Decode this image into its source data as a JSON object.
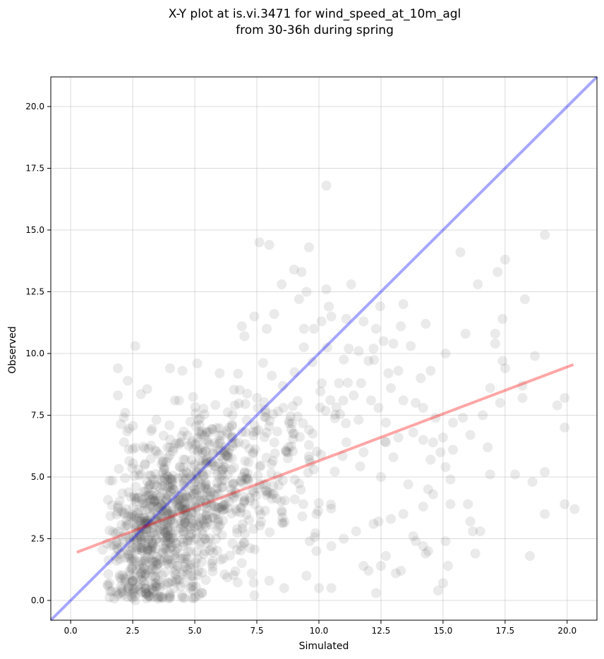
{
  "chart_data": {
    "type": "scatter",
    "title_line1": "X-Y plot at is.vi.3471 for wind_speed_at_10m_agl",
    "title_line2": "from 30-36h during spring",
    "xlabel": "Simulated",
    "ylabel": "Observed",
    "xlim": [
      -0.8,
      21.2
    ],
    "ylim": [
      -0.8,
      21.2
    ],
    "xticks": [
      0.0,
      2.5,
      5.0,
      7.5,
      10.0,
      12.5,
      15.0,
      17.5,
      20.0
    ],
    "yticks": [
      0.0,
      2.5,
      5.0,
      7.5,
      10.0,
      12.5,
      15.0,
      17.5,
      20.0
    ],
    "xtick_labels": [
      "0.0",
      "2.5",
      "5.0",
      "7.5",
      "10.0",
      "12.5",
      "15.0",
      "17.5",
      "20.0"
    ],
    "ytick_labels": [
      "0.0",
      "2.5",
      "5.0",
      "7.5",
      "10.0",
      "12.5",
      "15.0",
      "17.5",
      "20.0"
    ],
    "grid": true,
    "colors": {
      "points": "#555555",
      "identity_line": "#0000ff",
      "fit_line": "#ff0000",
      "grid": "#b0b0b0"
    },
    "identity_line": {
      "x": [
        -0.8,
        21.2
      ],
      "y": [
        -0.8,
        21.2
      ]
    },
    "fit_line": {
      "x": [
        0.25,
        20.25
      ],
      "y": [
        1.95,
        9.55
      ]
    },
    "points": [
      [
        2.6,
        10.3
      ],
      [
        1.9,
        9.4
      ],
      [
        2.3,
        8.9
      ],
      [
        1.9,
        8.3
      ],
      [
        2.2,
        7.6
      ],
      [
        4.2,
        8.1
      ],
      [
        4.0,
        9.4
      ],
      [
        4.5,
        9.3
      ],
      [
        5.1,
        9.6
      ],
      [
        6.0,
        9.2
      ],
      [
        6.9,
        11.1
      ],
      [
        7.0,
        10.7
      ],
      [
        7.4,
        11.5
      ],
      [
        7.9,
        11.0
      ],
      [
        7.6,
        14.5
      ],
      [
        8.0,
        14.4
      ],
      [
        9.6,
        14.3
      ],
      [
        8.2,
        11.6
      ],
      [
        8.1,
        9.1
      ],
      [
        8.5,
        12.8
      ],
      [
        9.0,
        13.4
      ],
      [
        9.3,
        13.3
      ],
      [
        9.5,
        12.5
      ],
      [
        9.2,
        12.2
      ],
      [
        9.4,
        11.0
      ],
      [
        9.8,
        11.0
      ],
      [
        10.1,
        11.3
      ],
      [
        10.3,
        16.8
      ],
      [
        10.3,
        12.6
      ],
      [
        10.4,
        11.9
      ],
      [
        10.5,
        11.5
      ],
      [
        11.1,
        11.4
      ],
      [
        11.3,
        12.8
      ],
      [
        11.8,
        11.3
      ],
      [
        12.3,
        11.0
      ],
      [
        12.6,
        10.5
      ],
      [
        13.3,
        11.1
      ],
      [
        13.4,
        12.0
      ],
      [
        13.7,
        10.3
      ],
      [
        14.3,
        11.2
      ],
      [
        13.0,
        10.4
      ],
      [
        12.2,
        10.2
      ],
      [
        11.6,
        10.1
      ],
      [
        11.2,
        10.2
      ],
      [
        12.0,
        9.7
      ],
      [
        12.8,
        9.2
      ],
      [
        13.2,
        9.3
      ],
      [
        14.1,
        9.0
      ],
      [
        14.5,
        9.3
      ],
      [
        15.1,
        10.0
      ],
      [
        15.7,
        14.1
      ],
      [
        16.4,
        12.8
      ],
      [
        17.2,
        13.3
      ],
      [
        17.5,
        13.8
      ],
      [
        18.3,
        12.2
      ],
      [
        19.1,
        14.8
      ],
      [
        17.4,
        11.4
      ],
      [
        17.1,
        10.8
      ],
      [
        17.1,
        10.4
      ],
      [
        17.4,
        9.7
      ],
      [
        17.5,
        9.4
      ],
      [
        17.3,
        8.0
      ],
      [
        16.9,
        8.6
      ],
      [
        15.9,
        10.8
      ],
      [
        16.6,
        7.5
      ],
      [
        15.8,
        7.4
      ],
      [
        15.4,
        7.2
      ],
      [
        15.0,
        6.6
      ],
      [
        14.6,
        6.4
      ],
      [
        15.4,
        6.1
      ],
      [
        16.1,
        6.7
      ],
      [
        16.8,
        6.2
      ],
      [
        18.2,
        8.7
      ],
      [
        18.2,
        8.2
      ],
      [
        18.7,
        9.9
      ],
      [
        19.6,
        7.9
      ],
      [
        19.9,
        8.2
      ],
      [
        19.9,
        7.0
      ],
      [
        16.9,
        5.1
      ],
      [
        17.9,
        5.1
      ],
      [
        18.6,
        4.8
      ],
      [
        19.1,
        5.2
      ],
      [
        19.1,
        3.5
      ],
      [
        19.9,
        3.9
      ],
      [
        20.3,
        3.7
      ],
      [
        18.5,
        1.8
      ],
      [
        16.0,
        3.9
      ],
      [
        16.1,
        3.2
      ],
      [
        16.2,
        2.8
      ],
      [
        16.5,
        2.8
      ],
      [
        16.3,
        1.9
      ],
      [
        15.3,
        3.9
      ],
      [
        15.2,
        1.4
      ],
      [
        15.0,
        0.7
      ],
      [
        14.8,
        0.4
      ],
      [
        15.1,
        2.4
      ],
      [
        14.6,
        4.3
      ],
      [
        14.4,
        4.5
      ],
      [
        14.2,
        3.8
      ],
      [
        14.4,
        2.0
      ],
      [
        14.2,
        2.2
      ],
      [
        13.8,
        2.6
      ],
      [
        13.9,
        2.4
      ],
      [
        14.3,
        1.9
      ],
      [
        13.3,
        1.2
      ],
      [
        13.1,
        1.1
      ],
      [
        12.7,
        1.8
      ],
      [
        12.5,
        1.4
      ],
      [
        12.0,
        1.2
      ],
      [
        11.8,
        1.4
      ],
      [
        12.3,
        0.3
      ],
      [
        10.0,
        0.5
      ],
      [
        10.5,
        0.5
      ],
      [
        9.5,
        1.0
      ],
      [
        8.6,
        0.5
      ],
      [
        8.0,
        0.8
      ],
      [
        5.3,
        0.3
      ],
      [
        4.9,
        0.1
      ],
      [
        4.0,
        0.1
      ],
      [
        2.6,
        0.0
      ],
      [
        12.5,
        5.0
      ],
      [
        13.0,
        5.8
      ],
      [
        12.7,
        6.4
      ],
      [
        11.8,
        6.0
      ],
      [
        13.2,
        6.6
      ],
      [
        13.8,
        6.8
      ],
      [
        14.2,
        6.5
      ],
      [
        14.9,
        6.0
      ],
      [
        15.1,
        5.4
      ],
      [
        15.3,
        4.9
      ],
      [
        14.5,
        5.7
      ],
      [
        13.6,
        4.7
      ],
      [
        13.4,
        3.5
      ],
      [
        12.9,
        3.3
      ],
      [
        12.4,
        3.2
      ],
      [
        12.2,
        3.1
      ],
      [
        11.5,
        2.8
      ],
      [
        11.0,
        2.5
      ],
      [
        10.5,
        2.2
      ],
      [
        9.9,
        2.0
      ],
      [
        12.1,
        8.1
      ],
      [
        11.7,
        8.8
      ],
      [
        11.4,
        8.3
      ],
      [
        12.4,
        7.8
      ],
      [
        12.9,
        8.6
      ],
      [
        13.4,
        8.1
      ],
      [
        13.9,
        8.0
      ],
      [
        14.2,
        7.8
      ],
      [
        14.7,
        7.4
      ],
      [
        12.7,
        7.2
      ]
    ]
  }
}
